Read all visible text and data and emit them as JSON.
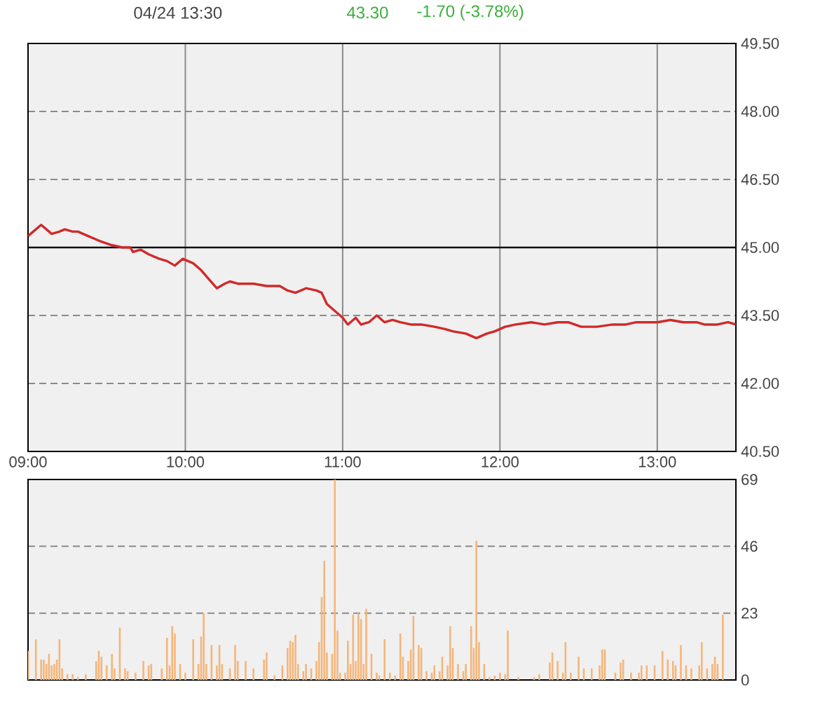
{
  "chart_data": [
    {
      "type": "line",
      "title": "04/24 13:30",
      "annotations": [
        "43.30",
        "-1.70 (-3.78%)"
      ],
      "x": [
        9.0,
        9.0333,
        9.0833,
        9.1167,
        9.15,
        9.2,
        9.2333,
        9.2833,
        9.3167,
        9.3833,
        9.45,
        9.5333,
        9.6,
        9.65,
        9.6667,
        9.7167,
        9.7667,
        9.8333,
        9.8833,
        9.9333,
        9.9833,
        10.05,
        10.1,
        10.15,
        10.2,
        10.25,
        10.2833,
        10.3333,
        10.4333,
        10.5167,
        10.6,
        10.65,
        10.7,
        10.7667,
        10.8333,
        10.8667,
        10.9,
        10.9667,
        11.0,
        11.0333,
        11.0833,
        11.1167,
        11.1667,
        11.2167,
        11.2667,
        11.3167,
        11.3667,
        11.4333,
        11.5,
        11.5833,
        11.65,
        11.7,
        11.7833,
        11.85,
        11.9167,
        11.9667,
        12.0333,
        12.1,
        12.2,
        12.2833,
        12.3667,
        12.4333,
        12.5167,
        12.6167,
        12.7167,
        12.8,
        12.8667,
        12.9333,
        13.0,
        13.0833,
        13.1667,
        13.25,
        13.3,
        13.3833,
        13.45,
        13.5
      ],
      "values": [
        45.25,
        45.35,
        45.5,
        45.4,
        45.3,
        45.35,
        45.4,
        45.35,
        45.35,
        45.25,
        45.15,
        45.05,
        45.0,
        45.0,
        44.9,
        44.95,
        44.85,
        44.75,
        44.7,
        44.6,
        44.75,
        44.65,
        44.5,
        44.3,
        44.1,
        44.2,
        44.25,
        44.2,
        44.2,
        44.15,
        44.15,
        44.05,
        44.0,
        44.1,
        44.05,
        44.0,
        43.75,
        43.55,
        43.45,
        43.3,
        43.45,
        43.3,
        43.35,
        43.5,
        43.35,
        43.4,
        43.35,
        43.3,
        43.3,
        43.25,
        43.2,
        43.15,
        43.1,
        43.0,
        43.1,
        43.15,
        43.25,
        43.3,
        43.35,
        43.3,
        43.35,
        43.35,
        43.25,
        43.25,
        43.3,
        43.3,
        43.35,
        43.35,
        43.35,
        43.4,
        43.35,
        43.35,
        43.3,
        43.3,
        43.35,
        43.3
      ],
      "color": "#d02a2a",
      "xlim": [
        9,
        13.5
      ],
      "ylim": [
        40.5,
        49.5
      ],
      "xticks": [
        {
          "value": 9,
          "label": "09:00"
        },
        {
          "value": 10,
          "label": "10:00"
        },
        {
          "value": 11,
          "label": "11:00"
        },
        {
          "value": 12,
          "label": "12:00"
        },
        {
          "value": 13,
          "label": "13:00"
        }
      ],
      "yticks": [
        {
          "value": 40.5,
          "label": "40.50"
        },
        {
          "value": 42,
          "label": "42.00"
        },
        {
          "value": 43.5,
          "label": "43.50"
        },
        {
          "value": 45,
          "label": "45.00"
        },
        {
          "value": 46.5,
          "label": "46.50"
        },
        {
          "value": 48,
          "label": "48.00"
        },
        {
          "value": 49.5,
          "label": "49.50"
        }
      ],
      "grid": true,
      "ref_lines": [
        {
          "axis": "y",
          "value": 45,
          "color": "#000000"
        }
      ]
    },
    {
      "type": "bar",
      "x": [
        9.0,
        9.05,
        9.0833,
        9.1,
        9.1167,
        9.1333,
        9.15,
        9.1667,
        9.1833,
        9.2,
        9.2167,
        9.25,
        9.2833,
        9.3167,
        9.3667,
        9.4333,
        9.45,
        9.4667,
        9.5,
        9.5333,
        9.55,
        9.5833,
        9.6167,
        9.6333,
        9.6833,
        9.7333,
        9.7667,
        9.7833,
        9.85,
        9.8833,
        9.9,
        9.9167,
        9.9333,
        9.9667,
        10.0,
        10.05,
        10.0833,
        10.1,
        10.1167,
        10.1333,
        10.1667,
        10.2,
        10.2167,
        10.2333,
        10.2833,
        10.3167,
        10.3333,
        10.3833,
        10.4333,
        10.5,
        10.5167,
        10.5667,
        10.6167,
        10.65,
        10.6667,
        10.6833,
        10.7,
        10.7167,
        10.75,
        10.7667,
        10.8,
        10.8333,
        10.85,
        10.8667,
        10.8833,
        10.9,
        10.9333,
        10.95,
        10.9667,
        10.9833,
        11.0167,
        11.0333,
        11.05,
        11.0667,
        11.0833,
        11.1,
        11.1167,
        11.1333,
        11.15,
        11.1833,
        11.2167,
        11.2333,
        11.2667,
        11.3,
        11.3333,
        11.3667,
        11.3833,
        11.4167,
        11.4333,
        11.45,
        11.4833,
        11.5,
        11.5333,
        11.5667,
        11.5833,
        11.6167,
        11.6333,
        11.6667,
        11.6833,
        11.7,
        11.7333,
        11.7667,
        11.7833,
        11.8167,
        11.8333,
        11.85,
        11.8667,
        11.9,
        11.9333,
        11.9667,
        12.0,
        12.0333,
        12.05,
        12.1167,
        12.2167,
        12.25,
        12.3167,
        12.3333,
        12.3667,
        12.4,
        12.4167,
        12.45,
        12.5,
        12.5333,
        12.5833,
        12.6333,
        12.65,
        12.6667,
        12.7333,
        12.7667,
        12.7833,
        12.8333,
        12.8833,
        12.9,
        12.9333,
        12.9833,
        13.0333,
        13.0667,
        13.1,
        13.1167,
        13.15,
        13.1833,
        13.2167,
        13.2667,
        13.2833,
        13.3167,
        13.35,
        13.3667,
        13.3833,
        13.4167
      ],
      "values": [
        10,
        14,
        7,
        7,
        5.5,
        9,
        5,
        5.5,
        7,
        14,
        4,
        2,
        2,
        1,
        2,
        6.5,
        10,
        8,
        5,
        9,
        4,
        18,
        4,
        3,
        2.5,
        6.5,
        5,
        5.5,
        4,
        14.5,
        5,
        18.5,
        16,
        5.5,
        2.5,
        14,
        5.5,
        15,
        23,
        5.5,
        12,
        5,
        12,
        5.5,
        4,
        12,
        6.5,
        6.5,
        4,
        7,
        9.5,
        1.5,
        5,
        11,
        13.5,
        13,
        15.5,
        5.5,
        3,
        5.5,
        4,
        6.5,
        13,
        28.5,
        41,
        9.5,
        9,
        69,
        17,
        2.5,
        2.5,
        13.5,
        5.5,
        22.5,
        6.5,
        23,
        21,
        5.5,
        24.5,
        9,
        2.5,
        1.5,
        14,
        2.5,
        1.5,
        16,
        8,
        6.5,
        10.5,
        22,
        12,
        11,
        3,
        2.5,
        5,
        3,
        8,
        5,
        18.5,
        11,
        5.5,
        3,
        5.5,
        18.5,
        11,
        48,
        13,
        5.5,
        1,
        1.5,
        2.5,
        2,
        17,
        1,
        1,
        2,
        6,
        9.5,
        6.5,
        2.5,
        13,
        2.5,
        8,
        4,
        4,
        5,
        10.5,
        10.5,
        2.5,
        6,
        7,
        2.5,
        2.5,
        5,
        5,
        5,
        10,
        7,
        6.5,
        5,
        12,
        5,
        4,
        5,
        13,
        4,
        5.5,
        8,
        5.5,
        22.5
      ],
      "color": "#f5b57a",
      "xlim": [
        9,
        13.5
      ],
      "ylim": [
        0,
        69
      ],
      "yticks": [
        0,
        23,
        46,
        69
      ],
      "grid": "y",
      "tick_labels": "y"
    }
  ]
}
